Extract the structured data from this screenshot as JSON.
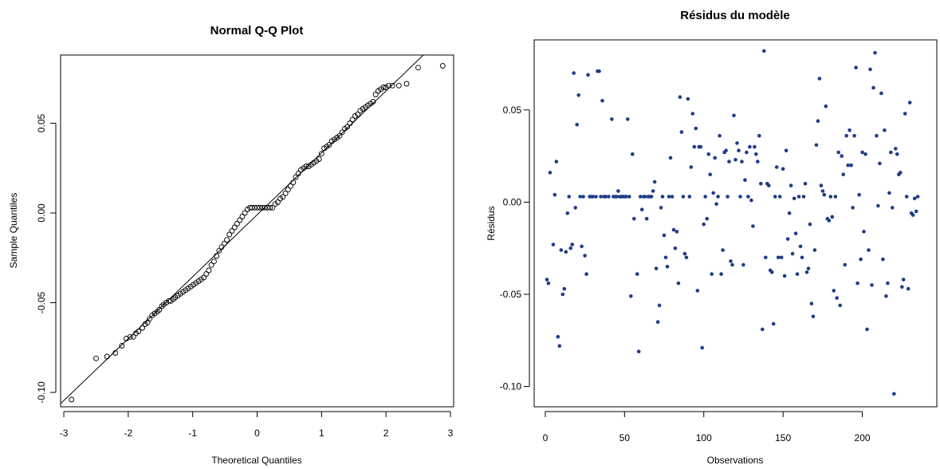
{
  "colors": {
    "qq_points": "#000000",
    "resid_points": "#1f3c88",
    "axis": "#000000"
  },
  "chart_data": [
    {
      "type": "scatter",
      "title": "Normal Q-Q Plot",
      "xlabel": "Theoretical Quantiles",
      "ylabel": "Sample Quantiles",
      "xlim": [
        -3.05,
        3.05
      ],
      "ylim": [
        -0.108,
        0.088
      ],
      "xticks": [
        -3,
        -2,
        -1,
        0,
        1,
        2,
        3
      ],
      "xtick_labels": [
        "-3",
        "-2",
        "-1",
        "0",
        "1",
        "2",
        "3"
      ],
      "yticks": [
        -0.1,
        -0.05,
        0.0,
        0.05
      ],
      "ytick_labels": [
        "-0.10",
        "-0.05",
        "0.00",
        "0.05"
      ],
      "marker": "open-circle",
      "reference_line": {
        "from": [
          -3.1,
          -0.108
        ],
        "to": [
          2.58,
          0.088
        ]
      },
      "points": [
        [
          -2.88,
          -0.104
        ],
        [
          -2.5,
          -0.081
        ],
        [
          -2.33,
          -0.08
        ],
        [
          -2.2,
          -0.078
        ],
        [
          -2.1,
          -0.074
        ],
        [
          -2.03,
          -0.07
        ],
        [
          -1.97,
          -0.069
        ],
        [
          -1.92,
          -0.069
        ],
        [
          -1.88,
          -0.067
        ],
        [
          -1.84,
          -0.066
        ],
        [
          -1.78,
          -0.064
        ],
        [
          -1.74,
          -0.062
        ],
        [
          -1.7,
          -0.061
        ],
        [
          -1.67,
          -0.059
        ],
        [
          -1.63,
          -0.057
        ],
        [
          -1.59,
          -0.056
        ],
        [
          -1.55,
          -0.055
        ],
        [
          -1.52,
          -0.054
        ],
        [
          -1.48,
          -0.052
        ],
        [
          -1.45,
          -0.051
        ],
        [
          -1.41,
          -0.05
        ],
        [
          -1.37,
          -0.049
        ],
        [
          -1.34,
          -0.049
        ],
        [
          -1.3,
          -0.048
        ],
        [
          -1.27,
          -0.047
        ],
        [
          -1.23,
          -0.046
        ],
        [
          -1.19,
          -0.045
        ],
        [
          -1.15,
          -0.044
        ],
        [
          -1.11,
          -0.043
        ],
        [
          -1.07,
          -0.042
        ],
        [
          -1.03,
          -0.041
        ],
        [
          -0.99,
          -0.04
        ],
        [
          -0.95,
          -0.039
        ],
        [
          -0.91,
          -0.038
        ],
        [
          -0.87,
          -0.037
        ],
        [
          -0.83,
          -0.036
        ],
        [
          -0.79,
          -0.034
        ],
        [
          -0.75,
          -0.032
        ],
        [
          -0.71,
          -0.029
        ],
        [
          -0.67,
          -0.027
        ],
        [
          -0.63,
          -0.024
        ],
        [
          -0.59,
          -0.021
        ],
        [
          -0.55,
          -0.019
        ],
        [
          -0.51,
          -0.017
        ],
        [
          -0.47,
          -0.015
        ],
        [
          -0.43,
          -0.012
        ],
        [
          -0.39,
          -0.01
        ],
        [
          -0.35,
          -0.008
        ],
        [
          -0.31,
          -0.006
        ],
        [
          -0.27,
          -0.004
        ],
        [
          -0.23,
          -0.002
        ],
        [
          -0.19,
          0.0
        ],
        [
          -0.15,
          0.002
        ],
        [
          -0.11,
          0.003
        ],
        [
          -0.08,
          0.003
        ],
        [
          -0.04,
          0.003
        ],
        [
          0.0,
          0.003
        ],
        [
          0.04,
          0.003
        ],
        [
          0.08,
          0.003
        ],
        [
          0.12,
          0.003
        ],
        [
          0.16,
          0.003
        ],
        [
          0.2,
          0.003
        ],
        [
          0.24,
          0.003
        ],
        [
          0.28,
          0.005
        ],
        [
          0.32,
          0.006
        ],
        [
          0.36,
          0.008
        ],
        [
          0.4,
          0.009
        ],
        [
          0.44,
          0.011
        ],
        [
          0.48,
          0.013
        ],
        [
          0.52,
          0.015
        ],
        [
          0.56,
          0.017
        ],
        [
          0.6,
          0.02
        ],
        [
          0.64,
          0.022
        ],
        [
          0.68,
          0.024
        ],
        [
          0.72,
          0.025
        ],
        [
          0.76,
          0.026
        ],
        [
          0.8,
          0.026
        ],
        [
          0.84,
          0.027
        ],
        [
          0.88,
          0.028
        ],
        [
          0.92,
          0.029
        ],
        [
          0.96,
          0.03
        ],
        [
          1.0,
          0.033
        ],
        [
          1.04,
          0.036
        ],
        [
          1.08,
          0.037
        ],
        [
          1.12,
          0.038
        ],
        [
          1.16,
          0.04
        ],
        [
          1.2,
          0.041
        ],
        [
          1.24,
          0.042
        ],
        [
          1.28,
          0.043
        ],
        [
          1.32,
          0.045
        ],
        [
          1.36,
          0.047
        ],
        [
          1.4,
          0.048
        ],
        [
          1.44,
          0.05
        ],
        [
          1.48,
          0.052
        ],
        [
          1.52,
          0.054
        ],
        [
          1.56,
          0.055
        ],
        [
          1.6,
          0.057
        ],
        [
          1.64,
          0.058
        ],
        [
          1.68,
          0.059
        ],
        [
          1.72,
          0.06
        ],
        [
          1.76,
          0.061
        ],
        [
          1.8,
          0.062
        ],
        [
          1.84,
          0.066
        ],
        [
          1.88,
          0.068
        ],
        [
          1.92,
          0.069
        ],
        [
          1.96,
          0.07
        ],
        [
          2.0,
          0.07
        ],
        [
          2.04,
          0.071
        ],
        [
          2.1,
          0.071
        ],
        [
          2.2,
          0.071
        ],
        [
          2.32,
          0.072
        ],
        [
          2.5,
          0.081
        ],
        [
          2.88,
          0.082
        ]
      ]
    },
    {
      "type": "scatter",
      "title": "Résidus du modèle",
      "xlabel": "Observations",
      "ylabel": "Résidus",
      "xlim": [
        -7,
        247
      ],
      "ylim": [
        -0.111,
        0.088
      ],
      "xticks": [
        0,
        50,
        100,
        150,
        200
      ],
      "xtick_labels": [
        "0",
        "50",
        "100",
        "150",
        "200"
      ],
      "yticks": [
        -0.1,
        -0.05,
        0.0,
        0.05
      ],
      "ytick_labels": [
        "-0.10",
        "-0.05",
        "0.00",
        "0.05"
      ],
      "marker": "filled-dot",
      "points": [
        [
          1,
          -0.042
        ],
        [
          2,
          -0.044
        ],
        [
          3,
          0.016
        ],
        [
          5,
          -0.023
        ],
        [
          6,
          0.004
        ],
        [
          7,
          0.022
        ],
        [
          8,
          -0.073
        ],
        [
          9,
          -0.078
        ],
        [
          10,
          -0.026
        ],
        [
          11,
          -0.05
        ],
        [
          12,
          -0.047
        ],
        [
          13,
          -0.027
        ],
        [
          14,
          -0.006
        ],
        [
          15,
          0.003
        ],
        [
          16,
          -0.025
        ],
        [
          17,
          -0.023
        ],
        [
          18,
          0.07
        ],
        [
          19,
          -0.003
        ],
        [
          20,
          0.042
        ],
        [
          21,
          0.058
        ],
        [
          22,
          0.003
        ],
        [
          23,
          -0.024
        ],
        [
          24,
          0.003
        ],
        [
          25,
          -0.029
        ],
        [
          26,
          -0.039
        ],
        [
          27,
          0.069
        ],
        [
          28,
          0.003
        ],
        [
          29,
          0.003
        ],
        [
          30,
          0.003
        ],
        [
          32,
          0.003
        ],
        [
          33,
          0.071
        ],
        [
          34,
          0.071
        ],
        [
          35,
          0.003
        ],
        [
          36,
          0.055
        ],
        [
          37,
          0.003
        ],
        [
          38,
          0.003
        ],
        [
          40,
          0.003
        ],
        [
          42,
          0.045
        ],
        [
          43,
          0.003
        ],
        [
          44,
          0.003
        ],
        [
          45,
          0.003
        ],
        [
          46,
          0.006
        ],
        [
          47,
          0.003
        ],
        [
          48,
          0.003
        ],
        [
          49,
          0.003
        ],
        [
          50,
          0.003
        ],
        [
          51,
          0.003
        ],
        [
          52,
          0.045
        ],
        [
          53,
          0.003
        ],
        [
          54,
          -0.051
        ],
        [
          55,
          0.026
        ],
        [
          56,
          -0.009
        ],
        [
          58,
          -0.039
        ],
        [
          59,
          -0.081
        ],
        [
          60,
          0.003
        ],
        [
          61,
          -0.004
        ],
        [
          62,
          0.003
        ],
        [
          63,
          0.003
        ],
        [
          64,
          -0.009
        ],
        [
          65,
          0.003
        ],
        [
          66,
          0.003
        ],
        [
          67,
          0.003
        ],
        [
          68,
          0.006
        ],
        [
          69,
          0.011
        ],
        [
          70,
          -0.036
        ],
        [
          71,
          -0.065
        ],
        [
          72,
          -0.056
        ],
        [
          73,
          -0.003
        ],
        [
          74,
          0.003
        ],
        [
          75,
          -0.018
        ],
        [
          76,
          -0.03
        ],
        [
          77,
          -0.035
        ],
        [
          78,
          0.003
        ],
        [
          79,
          0.024
        ],
        [
          80,
          0.003
        ],
        [
          81,
          -0.015
        ],
        [
          82,
          -0.025
        ],
        [
          83,
          -0.016
        ],
        [
          84,
          -0.044
        ],
        [
          85,
          0.057
        ],
        [
          86,
          0.038
        ],
        [
          87,
          0.003
        ],
        [
          88,
          -0.028
        ],
        [
          89,
          -0.03
        ],
        [
          90,
          0.056
        ],
        [
          91,
          0.003
        ],
        [
          92,
          0.019
        ],
        [
          93,
          0.048
        ],
        [
          94,
          0.03
        ],
        [
          95,
          0.04
        ],
        [
          96,
          -0.048
        ],
        [
          97,
          0.03
        ],
        [
          98,
          0.03
        ],
        [
          99,
          -0.079
        ],
        [
          100,
          -0.012
        ],
        [
          101,
          0.003
        ],
        [
          102,
          -0.009
        ],
        [
          103,
          0.026
        ],
        [
          104,
          0.015
        ],
        [
          105,
          -0.039
        ],
        [
          106,
          0.005
        ],
        [
          107,
          0.024
        ],
        [
          108,
          -0.001
        ],
        [
          109,
          0.003
        ],
        [
          110,
          0.036
        ],
        [
          111,
          -0.039
        ],
        [
          112,
          -0.026
        ],
        [
          113,
          0.027
        ],
        [
          114,
          0.028
        ],
        [
          115,
          0.003
        ],
        [
          116,
          0.022
        ],
        [
          117,
          -0.032
        ],
        [
          118,
          -0.034
        ],
        [
          119,
          0.047
        ],
        [
          120,
          0.023
        ],
        [
          121,
          0.032
        ],
        [
          122,
          0.028
        ],
        [
          123,
          0.003
        ],
        [
          124,
          0.022
        ],
        [
          125,
          -0.034
        ],
        [
          126,
          0.012
        ],
        [
          127,
          0.027
        ],
        [
          128,
          0.003
        ],
        [
          129,
          0.03
        ],
        [
          130,
          0.001
        ],
        [
          131,
          -0.013
        ],
        [
          132,
          0.03
        ],
        [
          133,
          0.026
        ],
        [
          134,
          0.022
        ],
        [
          135,
          0.036
        ],
        [
          136,
          0.01
        ],
        [
          137,
          -0.069
        ],
        [
          138,
          0.082
        ],
        [
          139,
          -0.03
        ],
        [
          140,
          0.01
        ],
        [
          141,
          0.009
        ],
        [
          142,
          -0.037
        ],
        [
          143,
          -0.038
        ],
        [
          144,
          -0.066
        ],
        [
          145,
          0.003
        ],
        [
          146,
          0.019
        ],
        [
          147,
          -0.03
        ],
        [
          148,
          0.003
        ],
        [
          149,
          -0.03
        ],
        [
          150,
          0.018
        ],
        [
          151,
          -0.04
        ],
        [
          152,
          0.028
        ],
        [
          153,
          -0.02
        ],
        [
          154,
          -0.006
        ],
        [
          155,
          0.009
        ],
        [
          156,
          -0.028
        ],
        [
          157,
          0.002
        ],
        [
          158,
          -0.017
        ],
        [
          159,
          -0.039
        ],
        [
          160,
          0.003
        ],
        [
          161,
          -0.024
        ],
        [
          162,
          -0.03
        ],
        [
          163,
          0.003
        ],
        [
          164,
          0.01
        ],
        [
          165,
          -0.038
        ],
        [
          166,
          -0.036
        ],
        [
          167,
          -0.012
        ],
        [
          168,
          -0.055
        ],
        [
          169,
          -0.062
        ],
        [
          170,
          -0.026
        ],
        [
          171,
          0.031
        ],
        [
          172,
          0.044
        ],
        [
          173,
          0.067
        ],
        [
          174,
          0.009
        ],
        [
          175,
          0.006
        ],
        [
          176,
          0.004
        ],
        [
          177,
          0.052
        ],
        [
          178,
          -0.009
        ],
        [
          179,
          -0.01
        ],
        [
          180,
          0.003
        ],
        [
          181,
          -0.008
        ],
        [
          182,
          -0.048
        ],
        [
          183,
          0.003
        ],
        [
          184,
          -0.052
        ],
        [
          185,
          0.027
        ],
        [
          186,
          -0.056
        ],
        [
          187,
          0.025
        ],
        [
          188,
          0.015
        ],
        [
          189,
          -0.034
        ],
        [
          190,
          0.036
        ],
        [
          191,
          0.02
        ],
        [
          192,
          0.039
        ],
        [
          193,
          0.02
        ],
        [
          194,
          -0.003
        ],
        [
          195,
          0.036
        ],
        [
          196,
          0.073
        ],
        [
          197,
          -0.044
        ],
        [
          198,
          0.004
        ],
        [
          199,
          -0.031
        ],
        [
          200,
          0.027
        ],
        [
          201,
          -0.016
        ],
        [
          202,
          0.026
        ],
        [
          203,
          -0.069
        ],
        [
          204,
          -0.026
        ],
        [
          205,
          0.072
        ],
        [
          206,
          -0.045
        ],
        [
          207,
          0.062
        ],
        [
          208,
          0.081
        ],
        [
          209,
          0.036
        ],
        [
          210,
          -0.002
        ],
        [
          211,
          0.021
        ],
        [
          212,
          0.059
        ],
        [
          213,
          -0.031
        ],
        [
          214,
          0.039
        ],
        [
          215,
          -0.051
        ],
        [
          216,
          -0.044
        ],
        [
          217,
          0.005
        ],
        [
          218,
          0.027
        ],
        [
          219,
          -0.003
        ],
        [
          220,
          -0.104
        ],
        [
          221,
          0.029
        ],
        [
          222,
          0.026
        ],
        [
          223,
          0.015
        ],
        [
          224,
          0.016
        ],
        [
          225,
          -0.046
        ],
        [
          226,
          -0.042
        ],
        [
          227,
          0.048
        ],
        [
          228,
          0.003
        ],
        [
          229,
          -0.047
        ],
        [
          230,
          0.054
        ],
        [
          231,
          -0.006
        ],
        [
          232,
          -0.007
        ],
        [
          233,
          0.002
        ],
        [
          234,
          -0.005
        ],
        [
          235,
          0.003
        ]
      ]
    }
  ]
}
